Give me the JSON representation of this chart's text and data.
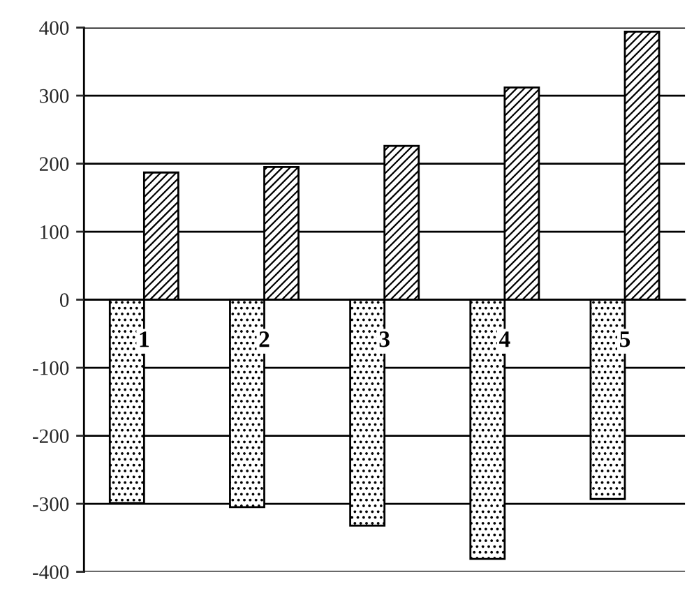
{
  "chart_data": {
    "type": "bar",
    "categories": [
      "1",
      "2",
      "3",
      "4",
      "5"
    ],
    "series": [
      {
        "color": "#000000",
        "values": [
          -299,
          -305,
          -332,
          -381,
          -293
        ]
      },
      {
        "color": "#000000",
        "values": [
          187,
          195,
          226,
          312,
          394
        ]
      }
    ],
    "ylim": [
      -400,
      400
    ],
    "yticks": [
      -400,
      -300,
      -200,
      -100,
      0,
      100,
      200,
      300,
      400
    ],
    "grid": "y",
    "legend": false
  }
}
